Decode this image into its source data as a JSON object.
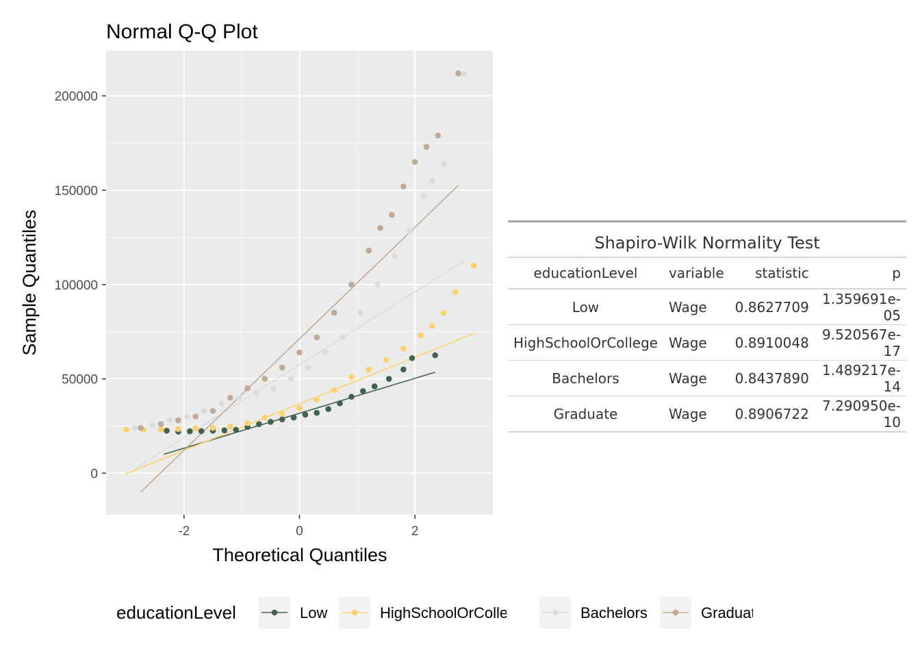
{
  "chart_data": {
    "type": "scatter",
    "title": "Normal Q-Q Plot",
    "xlabel": "Theoretical Quantiles",
    "ylabel": "Sample Quantiles",
    "xlim": [
      -3.35,
      3.35
    ],
    "ylim": [
      -22000,
      224000
    ],
    "x_ticks": [
      -2,
      0,
      2
    ],
    "x_tick_labels": [
      "-2",
      "0",
      "2"
    ],
    "y_ticks": [
      0,
      50000,
      100000,
      150000,
      200000
    ],
    "y_tick_labels": [
      "0",
      "50000",
      "100000",
      "150000",
      "200000"
    ],
    "grid": true,
    "legend": {
      "title": "educationLevel",
      "position": "bottom"
    },
    "series": [
      {
        "name": "Low",
        "color": "#44614F",
        "points": [
          [
            -2.3,
            22500
          ],
          [
            -2.1,
            22000
          ],
          [
            -1.9,
            22200
          ],
          [
            -1.7,
            22300
          ],
          [
            -1.5,
            22500
          ],
          [
            -1.3,
            22700
          ],
          [
            -1.1,
            23000
          ],
          [
            -0.9,
            24500
          ],
          [
            -0.7,
            26000
          ],
          [
            -0.5,
            27200
          ],
          [
            -0.3,
            28500
          ],
          [
            -0.1,
            29500
          ],
          [
            0.1,
            31000
          ],
          [
            0.3,
            32000
          ],
          [
            0.5,
            34000
          ],
          [
            0.7,
            37000
          ],
          [
            0.9,
            40500
          ],
          [
            1.1,
            43500
          ],
          [
            1.3,
            46000
          ],
          [
            1.55,
            50000
          ],
          [
            1.8,
            55000
          ],
          [
            1.95,
            61000
          ],
          [
            2.35,
            62500
          ]
        ],
        "line": [
          [
            -2.35,
            10000
          ],
          [
            2.35,
            53500
          ]
        ]
      },
      {
        "name": "HighSchoolOrCollege",
        "color": "#FCD26B",
        "points": [
          [
            -3.0,
            23000
          ],
          [
            -2.7,
            23000
          ],
          [
            -2.4,
            23200
          ],
          [
            -2.1,
            23400
          ],
          [
            -1.8,
            23700
          ],
          [
            -1.5,
            24000
          ],
          [
            -1.2,
            24800
          ],
          [
            -0.9,
            26500
          ],
          [
            -0.6,
            29500
          ],
          [
            -0.3,
            31500
          ],
          [
            0.0,
            34500
          ],
          [
            0.3,
            39000
          ],
          [
            0.6,
            44000
          ],
          [
            0.9,
            51000
          ],
          [
            1.2,
            55000
          ],
          [
            1.5,
            60000
          ],
          [
            1.8,
            66000
          ],
          [
            2.1,
            73000
          ],
          [
            2.3,
            78000
          ],
          [
            2.5,
            85000
          ],
          [
            2.7,
            96000
          ],
          [
            3.02,
            110000
          ]
        ],
        "line": [
          [
            -3.02,
            -500
          ],
          [
            3.02,
            74000
          ]
        ]
      },
      {
        "name": "Bachelors",
        "color": "#D8DEDC",
        "points": [
          [
            -2.85,
            24000
          ],
          [
            -2.55,
            25500
          ],
          [
            -2.25,
            28000
          ],
          [
            -1.95,
            30000
          ],
          [
            -1.65,
            33000
          ],
          [
            -1.35,
            37000
          ],
          [
            -1.05,
            40000
          ],
          [
            -0.75,
            42500
          ],
          [
            -0.45,
            45000
          ],
          [
            -0.15,
            50000
          ],
          [
            0.15,
            56000
          ],
          [
            0.45,
            64000
          ],
          [
            0.75,
            72000
          ],
          [
            1.05,
            85000
          ],
          [
            1.35,
            100000
          ],
          [
            1.65,
            115000
          ],
          [
            1.9,
            128000
          ],
          [
            2.15,
            147000
          ],
          [
            2.3,
            155000
          ],
          [
            2.5,
            164000
          ],
          [
            2.85,
            211500
          ]
        ],
        "line": [
          [
            -2.85,
            2500
          ],
          [
            2.85,
            112500
          ]
        ]
      },
      {
        "name": "Graduate",
        "color": "#C1AA95",
        "points": [
          [
            -2.75,
            24000
          ],
          [
            -2.4,
            26000
          ],
          [
            -2.1,
            28000
          ],
          [
            -1.8,
            30000
          ],
          [
            -1.5,
            33000
          ],
          [
            -1.2,
            40000
          ],
          [
            -0.9,
            45000
          ],
          [
            -0.6,
            50000
          ],
          [
            -0.3,
            56000
          ],
          [
            0.0,
            64000
          ],
          [
            0.3,
            72000
          ],
          [
            0.6,
            85000
          ],
          [
            0.9,
            100000
          ],
          [
            1.2,
            118000
          ],
          [
            1.4,
            130000
          ],
          [
            1.6,
            137000
          ],
          [
            1.8,
            152000
          ],
          [
            2.0,
            165000
          ],
          [
            2.2,
            173000
          ],
          [
            2.4,
            179000
          ],
          [
            2.75,
            212000
          ]
        ],
        "line": [
          [
            -2.75,
            -10000
          ],
          [
            2.75,
            152500
          ]
        ]
      }
    ]
  },
  "table": {
    "caption": "Shapiro-Wilk Normality Test",
    "headers": [
      "educationLevel",
      "variable",
      "statistic",
      "p"
    ],
    "rows": [
      [
        "Low",
        "Wage",
        "0.8627709",
        "1.359691e-05"
      ],
      [
        "HighSchoolOrCollege",
        "Wage",
        "0.8910048",
        "9.520567e-17"
      ],
      [
        "Bachelors",
        "Wage",
        "0.8437890",
        "1.489217e-14"
      ],
      [
        "Graduate",
        "Wage",
        "0.8906722",
        "7.290950e-10"
      ]
    ]
  }
}
